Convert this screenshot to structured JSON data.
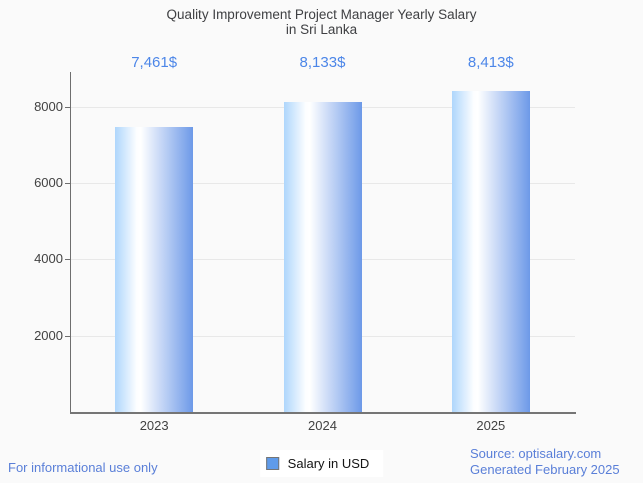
{
  "header": {
    "title_line1": "Quality Improvement Project Manager Yearly Salary",
    "title_line2": "in Sri Lanka"
  },
  "chart_data": {
    "type": "bar",
    "title": "Quality Improvement Project Manager Yearly Salary in Sri Lanka",
    "categories": [
      "2023",
      "2024",
      "2025"
    ],
    "values": [
      7461,
      8133,
      8413
    ],
    "value_labels": [
      "7,461$",
      "8,133$",
      "8,413$"
    ],
    "series_name": "Salary in USD",
    "xlabel": "",
    "ylabel": "",
    "ylim": [
      0,
      8910
    ],
    "yticks": [
      2000,
      4000,
      6000,
      8000
    ],
    "grid": true,
    "legend_position": "bottom-center",
    "bar_gradient": [
      "#aed6fc",
      "#ffffff",
      "#6d99e8"
    ],
    "value_label_color": "#4c86e8"
  },
  "legend": {
    "label": "Salary in USD",
    "swatch_color": "#5f9bea"
  },
  "footer": {
    "disclaimer": "For informational use only",
    "source": "Source: optisalary.com",
    "generated": "Generated February 2025",
    "text_color": "#5a7fd8"
  }
}
